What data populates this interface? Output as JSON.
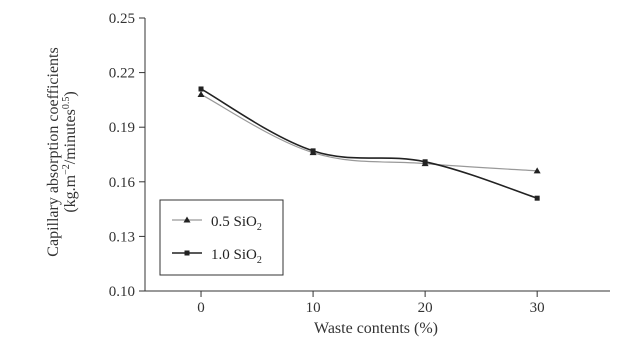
{
  "chart_data": {
    "type": "line",
    "x": [
      0,
      10,
      20,
      30
    ],
    "xlabel": "Waste contents (%)",
    "ylabel_line1": "Capillary absorption coefficients",
    "ylabel_line2": "(kg.m",
    "ylabel_line2_sup1": "−2",
    "ylabel_line2_mid": "/minutes",
    "ylabel_line2_sup2": "0.5",
    "ylabel_line2_end": ")",
    "xlim": [
      -5,
      36.5
    ],
    "ylim": [
      0.1,
      0.25
    ],
    "x_ticks": [
      "0",
      "10",
      "20",
      "30"
    ],
    "y_ticks": [
      "0.10",
      "0.13",
      "0.16",
      "0.19",
      "0.22",
      "0.25"
    ],
    "grid": false,
    "legend_position": "lower-left",
    "series": [
      {
        "name_main": "0.5 SiO",
        "name_sub": "2",
        "marker": "triangle",
        "color": "#999999",
        "values": [
          0.208,
          0.176,
          0.17,
          0.166
        ]
      },
      {
        "name_main": "1.0 SiO",
        "name_sub": "2",
        "marker": "square",
        "color": "#222222",
        "values": [
          0.211,
          0.177,
          0.171,
          0.151
        ]
      }
    ]
  }
}
